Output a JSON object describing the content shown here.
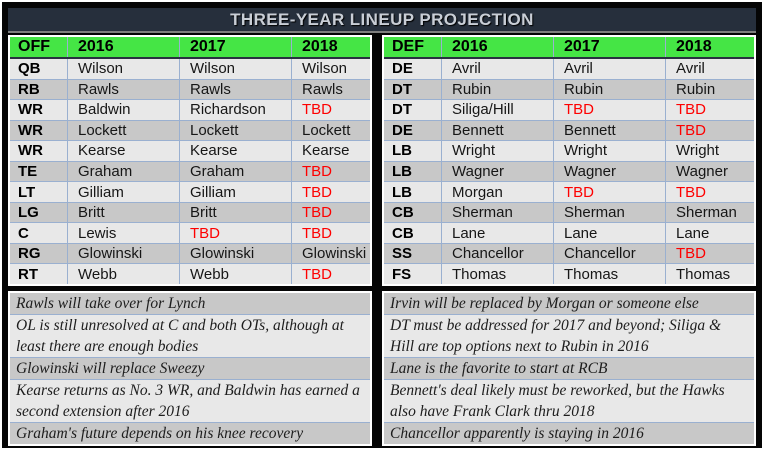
{
  "title": "THREE-YEAR LINEUP PROJECTION",
  "colors": {
    "frame_black": "#050505",
    "title_bg": "#262f3c",
    "title_text": "#c9ced6",
    "title_underline": "#7e7e7e",
    "header_green": "#45e545",
    "row_light": "#e8e8e8",
    "row_dark": "#c8c8c8",
    "grid_blue": "#9ab0d0",
    "tbd_red": "#fe0000",
    "table_border_white": "#ffffff"
  },
  "chart_data": [
    {
      "type": "table",
      "name": "offense",
      "columns": [
        "OFF",
        "2016",
        "2017",
        "2018"
      ],
      "rows": [
        [
          "QB",
          "Wilson",
          "Wilson",
          "Wilson"
        ],
        [
          "RB",
          "Rawls",
          "Rawls",
          "Rawls"
        ],
        [
          "WR",
          "Baldwin",
          "Richardson",
          "TBD"
        ],
        [
          "WR",
          "Lockett",
          "Lockett",
          "Lockett"
        ],
        [
          "WR",
          "Kearse",
          "Kearse",
          "Kearse"
        ],
        [
          "TE",
          "Graham",
          "Graham",
          "TBD"
        ],
        [
          "LT",
          "Gilliam",
          "Gilliam",
          "TBD"
        ],
        [
          "LG",
          "Britt",
          "Britt",
          "TBD"
        ],
        [
          "C",
          "Lewis",
          "TBD",
          "TBD"
        ],
        [
          "RG",
          "Glowinski",
          "Glowinski",
          "Glowinski"
        ],
        [
          "RT",
          "Webb",
          "Webb",
          "TBD"
        ]
      ],
      "notes": [
        "Rawls will take over for Lynch",
        "OL is still unresolved at C and both OTs, although at least there are enough bodies",
        "Glowinski will replace Sweezy",
        "Kearse returns as No. 3 WR, and Baldwin has earned a second extension after 2016",
        "Graham's future depends on his knee recovery"
      ]
    },
    {
      "type": "table",
      "name": "defense",
      "columns": [
        "DEF",
        "2016",
        "2017",
        "2018"
      ],
      "rows": [
        [
          "DE",
          "Avril",
          "Avril",
          "Avril"
        ],
        [
          "DT",
          "Rubin",
          "Rubin",
          "Rubin"
        ],
        [
          "DT",
          "Siliga/Hill",
          "TBD",
          "TBD"
        ],
        [
          "DE",
          "Bennett",
          "Bennett",
          "TBD"
        ],
        [
          "LB",
          "Wright",
          "Wright",
          "Wright"
        ],
        [
          "LB",
          "Wagner",
          "Wagner",
          "Wagner"
        ],
        [
          "LB",
          "Morgan",
          "TBD",
          "TBD"
        ],
        [
          "CB",
          "Sherman",
          "Sherman",
          "Sherman"
        ],
        [
          "CB",
          "Lane",
          "Lane",
          "Lane"
        ],
        [
          "SS",
          "Chancellor",
          "Chancellor",
          "TBD"
        ],
        [
          "FS",
          "Thomas",
          "Thomas",
          "Thomas"
        ]
      ],
      "notes": [
        "Irvin will be replaced by Morgan or someone else",
        "DT must be addressed for 2017 and beyond; Siliga & Hill are top options next to Rubin in 2016",
        "Lane is the favorite to start at RCB",
        "Bennett's deal likely must be reworked, but the Hawks also have Frank Clark thru 2018",
        "Chancellor apparently is staying in 2016"
      ]
    }
  ]
}
